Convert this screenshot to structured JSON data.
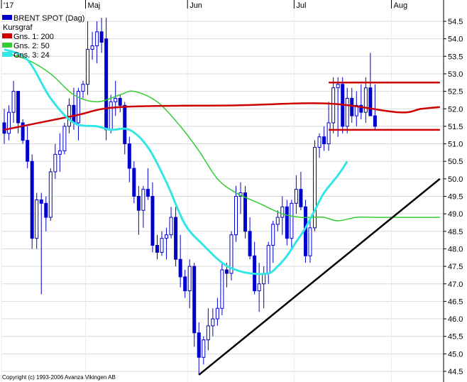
{
  "chart_data": {
    "type": "candlestick",
    "title": "BRENT SPOT (Dag)",
    "subtitle": "Kursgraf",
    "ylim": [
      44.3,
      54.8
    ],
    "y_ticks": [
      "44.5",
      "45.0",
      "45.5",
      "46.0",
      "46.5",
      "47.0",
      "47.5",
      "48.0",
      "48.5",
      "49.0",
      "49.5",
      "50.0",
      "50.5",
      "51.0",
      "51.5",
      "52.0",
      "52.5",
      "53.0",
      "53.5",
      "54.0",
      "54.5"
    ],
    "month_labels": [
      {
        "label": "'17",
        "bar": 0
      },
      {
        "label": "Maj",
        "bar": 18
      },
      {
        "label": "Jun",
        "bar": 40
      },
      {
        "label": "Jul",
        "bar": 63
      },
      {
        "label": "Aug",
        "bar": 84
      }
    ],
    "legend": [
      {
        "label": "BRENT SPOT (Dag)",
        "color": "#0000cc"
      },
      {
        "label": "Gns. 1: 200",
        "color": "#cc0000"
      },
      {
        "label": "Gns. 2: 50",
        "color": "#33cc33"
      },
      {
        "label": "Gns. 3: 24",
        "color": "#33e6e6"
      }
    ],
    "candles": [
      [
        51.6,
        52.0,
        51.0,
        51.3
      ],
      [
        51.3,
        52.1,
        51.1,
        51.9
      ],
      [
        51.9,
        52.8,
        51.6,
        52.5
      ],
      [
        52.5,
        52.5,
        51.3,
        51.6
      ],
      [
        51.6,
        51.7,
        51.0,
        51.1
      ],
      [
        51.1,
        51.5,
        50.3,
        50.5
      ],
      [
        50.5,
        50.7,
        48.0,
        48.3
      ],
      [
        48.3,
        49.6,
        48.0,
        49.4
      ],
      [
        49.4,
        49.6,
        46.7,
        49.3
      ],
      [
        49.3,
        49.5,
        48.5,
        48.9
      ],
      [
        48.9,
        50.3,
        48.8,
        50.2
      ],
      [
        50.2,
        51.0,
        50.0,
        50.7
      ],
      [
        50.7,
        51.3,
        50.2,
        50.8
      ],
      [
        50.8,
        51.6,
        50.7,
        51.5
      ],
      [
        51.5,
        52.3,
        51.3,
        52.1
      ],
      [
        52.1,
        52.6,
        51.4,
        51.6
      ],
      [
        51.6,
        52.6,
        51.1,
        52.5
      ],
      [
        52.5,
        52.8,
        52.3,
        52.7
      ],
      [
        52.7,
        54.5,
        52.4,
        53.7
      ],
      [
        53.7,
        54.2,
        53.4,
        53.8
      ],
      [
        53.8,
        54.5,
        53.3,
        54.2
      ],
      [
        54.2,
        54.6,
        53.6,
        53.9
      ],
      [
        54.0,
        54.6,
        51.1,
        51.4
      ],
      [
        51.4,
        52.4,
        51.3,
        52.2
      ],
      [
        52.2,
        52.8,
        51.8,
        52.3
      ],
      [
        52.3,
        52.4,
        51.9,
        52.1
      ],
      [
        52.1,
        52.2,
        50.7,
        51.0
      ],
      [
        51.0,
        51.2,
        49.9,
        50.3
      ],
      [
        50.3,
        50.5,
        49.3,
        49.5
      ],
      [
        49.5,
        49.8,
        48.4,
        49.1
      ],
      [
        49.1,
        49.8,
        48.6,
        49.7
      ],
      [
        49.7,
        50.3,
        49.4,
        49.5
      ],
      [
        49.5,
        49.9,
        47.9,
        48.1
      ],
      [
        48.1,
        48.4,
        47.7,
        47.9
      ],
      [
        47.9,
        48.5,
        47.8,
        48.3
      ],
      [
        48.3,
        48.6,
        47.7,
        48.4
      ],
      [
        48.4,
        49.2,
        48.3,
        48.9
      ],
      [
        48.9,
        49.2,
        47.5,
        47.7
      ],
      [
        47.7,
        48.4,
        46.9,
        47.2
      ],
      [
        47.2,
        47.4,
        46.6,
        46.8
      ],
      [
        46.8,
        47.7,
        46.3,
        47.5
      ],
      [
        47.5,
        47.6,
        45.2,
        45.6
      ],
      [
        45.6,
        45.9,
        44.4,
        44.9
      ],
      [
        44.9,
        45.5,
        44.7,
        45.4
      ],
      [
        45.4,
        46.3,
        45.1,
        45.8
      ],
      [
        45.8,
        46.3,
        45.5,
        46.0
      ],
      [
        46.0,
        46.6,
        45.8,
        46.3
      ],
      [
        46.3,
        47.6,
        46.1,
        47.4
      ],
      [
        47.4,
        47.6,
        46.9,
        47.3
      ],
      [
        47.3,
        48.5,
        47.1,
        48.4
      ],
      [
        48.4,
        49.8,
        48.2,
        49.5
      ],
      [
        49.5,
        49.9,
        49.0,
        49.6
      ],
      [
        49.6,
        49.8,
        48.3,
        48.5
      ],
      [
        48.5,
        48.9,
        47.7,
        47.8
      ],
      [
        47.8,
        48.2,
        46.7,
        46.8
      ],
      [
        46.8,
        47.6,
        46.2,
        47.0
      ],
      [
        47.0,
        47.5,
        46.3,
        47.3
      ],
      [
        47.3,
        48.2,
        47.0,
        48.1
      ],
      [
        48.1,
        48.8,
        47.6,
        48.7
      ],
      [
        48.7,
        49.1,
        48.5,
        48.9
      ],
      [
        48.9,
        49.5,
        48.4,
        49.2
      ],
      [
        49.2,
        49.4,
        48.1,
        48.3
      ],
      [
        48.3,
        49.4,
        48.0,
        49.3
      ],
      [
        49.3,
        50.1,
        49.0,
        49.7
      ],
      [
        49.7,
        50.2,
        49.1,
        49.2
      ],
      [
        49.2,
        49.4,
        47.6,
        47.8
      ],
      [
        47.8,
        48.8,
        47.6,
        48.6
      ],
      [
        48.6,
        51.1,
        48.5,
        50.9
      ],
      [
        50.9,
        51.3,
        50.6,
        51.2
      ],
      [
        51.2,
        51.5,
        50.8,
        51.0
      ],
      [
        51.0,
        52.2,
        50.8,
        51.6
      ],
      [
        51.6,
        52.9,
        51.3,
        52.6
      ],
      [
        52.6,
        52.9,
        51.2,
        52.7
      ],
      [
        52.7,
        52.9,
        51.3,
        51.5
      ],
      [
        51.5,
        52.6,
        51.3,
        52.3
      ],
      [
        52.3,
        52.6,
        51.6,
        51.8
      ],
      [
        51.8,
        52.5,
        51.5,
        52.1
      ],
      [
        52.1,
        52.7,
        51.7,
        51.9
      ],
      [
        51.9,
        52.9,
        51.6,
        52.6
      ],
      [
        52.6,
        53.6,
        51.8,
        51.8
      ],
      [
        51.8,
        52.7,
        51.4,
        51.5
      ]
    ],
    "ma200": [
      [
        0,
        51.4
      ],
      [
        15,
        51.8
      ],
      [
        25,
        52.05
      ],
      [
        50,
        52.1
      ],
      [
        70,
        52.15
      ],
      [
        85,
        51.9
      ],
      [
        90,
        52.0
      ],
      [
        94,
        52.05
      ]
    ],
    "ma50": [
      [
        0,
        53.6
      ],
      [
        5,
        53.4
      ],
      [
        10,
        53.0
      ],
      [
        15,
        52.4
      ],
      [
        20,
        52.2
      ],
      [
        25,
        52.4
      ],
      [
        28,
        52.5
      ],
      [
        33,
        52.2
      ],
      [
        38,
        51.5
      ],
      [
        42,
        50.8
      ],
      [
        46,
        50.0
      ],
      [
        50,
        49.6
      ],
      [
        55,
        49.3
      ],
      [
        60,
        49.0
      ],
      [
        64,
        48.9
      ],
      [
        66,
        48.9
      ],
      [
        69,
        48.9
      ],
      [
        72,
        48.8
      ],
      [
        76,
        48.9
      ],
      [
        80,
        48.9
      ],
      [
        85,
        48.9
      ],
      [
        94,
        48.9
      ]
    ],
    "ma24": [
      [
        0,
        53.7
      ],
      [
        5,
        53.4
      ],
      [
        10,
        52.3
      ],
      [
        15,
        51.6
      ],
      [
        20,
        51.5
      ],
      [
        23,
        51.4
      ],
      [
        27,
        51.4
      ],
      [
        31,
        50.9
      ],
      [
        35,
        49.9
      ],
      [
        39,
        48.7
      ],
      [
        43,
        48.1
      ],
      [
        47,
        47.6
      ],
      [
        50,
        47.4
      ],
      [
        53,
        47.3
      ],
      [
        57,
        47.3
      ],
      [
        59,
        47.5
      ],
      [
        61,
        47.8
      ],
      [
        63,
        48.2
      ],
      [
        65,
        48.6
      ],
      [
        67,
        49.1
      ],
      [
        69,
        49.6
      ],
      [
        72,
        50.1
      ],
      [
        74,
        50.5
      ]
    ],
    "trendlines": [
      {
        "color": "#000000",
        "from": [
          42,
          44.4
        ],
        "to": [
          94,
          50.0
        ]
      },
      {
        "color": "#cc0000",
        "from": [
          70,
          52.75
        ],
        "to": [
          94,
          52.75
        ]
      },
      {
        "color": "#cc0000",
        "from": [
          70,
          51.4
        ],
        "to": [
          94,
          51.4
        ]
      }
    ]
  },
  "copyright": "Copyright (c) 1993-2006 Avanza Vikingen AB"
}
